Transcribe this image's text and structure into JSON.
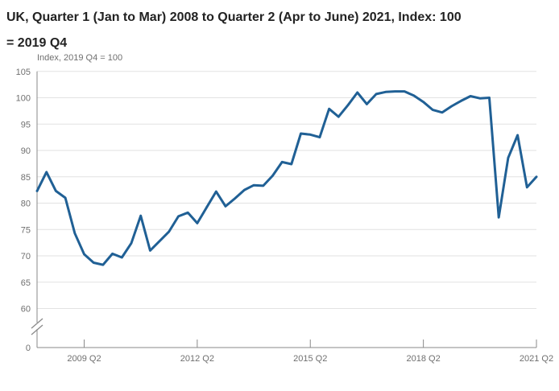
{
  "title_line1": "UK, Quarter 1 (Jan to Mar) 2008 to Quarter 2 (Apr to June) 2021, Index: 100",
  "title_line2": "= 2019 Q4",
  "subtitle": "Index, 2019 Q4 = 100",
  "colors": {
    "line": "#206095",
    "title": "#222222",
    "subtitle": "#6f6f6f",
    "axis": "#8a8a8a",
    "tick_label": "#6f6f6f",
    "gridline": "#e2e2e2",
    "background": "#ffffff"
  },
  "chart_data": {
    "type": "line",
    "title": "UK, Quarter 1 (Jan to Mar) 2008 to Quarter 2 (Apr to June) 2021, Index: 100 = 2019 Q4",
    "ylabel": "Index, 2019 Q4 = 100",
    "xlabel": "",
    "grid": true,
    "legend": false,
    "y_ticks": [
      0,
      60,
      65,
      70,
      75,
      80,
      85,
      90,
      95,
      100,
      105
    ],
    "y_axis_break": true,
    "ylim_upper": [
      60,
      105
    ],
    "x_tick_labels": [
      "2009 Q2",
      "2012 Q2",
      "2015 Q2",
      "2018 Q2",
      "2021 Q2"
    ],
    "x_tick_indices": [
      5,
      17,
      29,
      41,
      53
    ],
    "categories": [
      "2008 Q1",
      "2008 Q2",
      "2008 Q3",
      "2008 Q4",
      "2009 Q1",
      "2009 Q2",
      "2009 Q3",
      "2009 Q4",
      "2010 Q1",
      "2010 Q2",
      "2010 Q3",
      "2010 Q4",
      "2011 Q1",
      "2011 Q2",
      "2011 Q3",
      "2011 Q4",
      "2012 Q1",
      "2012 Q2",
      "2012 Q3",
      "2012 Q4",
      "2013 Q1",
      "2013 Q2",
      "2013 Q3",
      "2013 Q4",
      "2014 Q1",
      "2014 Q2",
      "2014 Q3",
      "2014 Q4",
      "2015 Q1",
      "2015 Q2",
      "2015 Q3",
      "2015 Q4",
      "2016 Q1",
      "2016 Q2",
      "2016 Q3",
      "2016 Q4",
      "2017 Q1",
      "2017 Q2",
      "2017 Q3",
      "2017 Q4",
      "2018 Q1",
      "2018 Q2",
      "2018 Q3",
      "2018 Q4",
      "2019 Q1",
      "2019 Q2",
      "2019 Q3",
      "2019 Q4",
      "2020 Q1",
      "2020 Q2",
      "2020 Q3",
      "2020 Q4",
      "2021 Q1",
      "2021 Q2"
    ],
    "series": [
      {
        "name": "Index, 2019 Q4 = 100",
        "color": "#206095",
        "values": [
          82.3,
          85.9,
          82.3,
          81.0,
          74.3,
          70.3,
          68.7,
          68.3,
          70.4,
          69.7,
          72.4,
          77.6,
          71.0,
          72.8,
          74.6,
          77.5,
          78.2,
          76.2,
          79.2,
          82.2,
          79.4,
          80.9,
          82.5,
          83.4,
          83.3,
          85.2,
          87.8,
          87.4,
          93.2,
          93.0,
          92.5,
          97.9,
          96.4,
          98.6,
          101.0,
          98.8,
          100.7,
          101.1,
          101.2,
          101.2,
          100.4,
          99.2,
          97.7,
          97.2,
          98.4,
          99.4,
          100.3,
          99.9,
          100.0,
          77.3,
          88.6,
          92.9,
          83.0,
          85.0
        ]
      }
    ]
  }
}
